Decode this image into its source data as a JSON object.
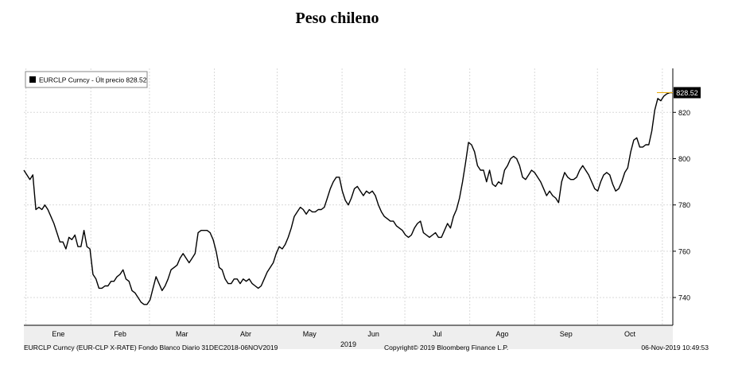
{
  "title": "Peso chileno",
  "legend": {
    "label": "EURCLP Curncy - Últ precio 828.52",
    "color": "#000000"
  },
  "last_value_label": "828.52",
  "footer": {
    "left": "EURCLP Curncy (EUR-CLP X-RATE) Fondo Blanco  Diario 31DEC2018-06NOV2019",
    "center": "Copyright© 2019 Bloomberg Finance L.P.",
    "right": "06-Nov-2019 10:49:53"
  },
  "colors": {
    "line": "#000000",
    "last_marker": "#e8a800",
    "grid": "#d9d9d9",
    "axis_band": "#eeeeee"
  },
  "chart_data": {
    "type": "line",
    "series": [
      {
        "name": "EURCLP Curncy - Últ precio 828.52",
        "x_start": "2018-12-31",
        "x_end": "2019-11-06",
        "values": [
          795,
          793,
          791,
          793,
          778,
          779,
          778,
          780,
          778,
          775,
          772,
          768,
          764,
          764,
          761,
          766,
          765,
          767,
          762,
          762,
          769,
          762,
          761,
          750,
          748,
          744,
          744,
          745,
          745,
          747,
          747,
          749,
          750,
          752,
          748,
          747,
          743,
          742,
          740,
          738,
          737,
          737,
          739,
          744,
          749,
          746,
          743,
          745,
          748,
          752,
          753,
          754,
          757,
          759,
          757,
          755,
          757,
          759,
          768,
          769,
          769,
          769,
          768,
          765,
          760,
          753,
          752,
          748,
          746,
          746,
          748,
          748,
          746,
          748,
          747,
          748,
          746,
          745,
          744,
          745,
          748,
          751,
          753,
          755,
          759,
          762,
          761,
          763,
          766,
          770,
          775,
          777,
          779,
          778,
          776,
          778,
          777,
          777,
          778,
          778,
          779,
          783,
          787,
          790,
          792,
          792,
          786,
          782,
          780,
          783,
          787,
          788,
          786,
          784,
          786,
          785,
          786,
          784,
          780,
          777,
          775,
          774,
          773,
          773,
          771,
          770,
          769,
          767,
          766,
          767,
          770,
          772,
          773,
          768,
          767,
          766,
          767,
          768,
          766,
          766,
          769,
          772,
          770,
          775,
          778,
          783,
          790,
          798,
          807,
          806,
          803,
          797,
          795,
          795,
          790,
          795,
          789,
          788,
          790,
          789,
          795,
          797,
          800,
          801,
          800,
          797,
          792,
          791,
          793,
          795,
          794,
          792,
          790,
          787,
          784,
          786,
          784,
          783,
          781,
          790,
          794,
          792,
          791,
          791,
          792,
          795,
          797,
          795,
          793,
          790,
          787,
          786,
          790,
          793,
          794,
          793,
          789,
          786,
          787,
          790,
          794,
          796,
          803,
          808,
          809,
          805,
          805,
          806,
          806,
          812,
          821,
          826,
          825,
          827,
          828,
          828.5,
          828.5
        ]
      }
    ],
    "x_tick_labels": [
      "Ene",
      "Feb",
      "Mar",
      "Abr",
      "May",
      "Jun",
      "Jul",
      "Ago",
      "Sep",
      "Oct"
    ],
    "x_tick_dates": [
      "2019-01-01",
      "2019-02-01",
      "2019-03-01",
      "2019-04-01",
      "2019-05-01",
      "2019-06-01",
      "2019-07-01",
      "2019-08-01",
      "2019-09-01",
      "2019-10-01",
      "2019-11-01"
    ],
    "x_year_label": "2019",
    "y_ticks": [
      740,
      760,
      780,
      800,
      820
    ],
    "ylim": [
      728,
      839
    ],
    "ylabel": "",
    "xlabel": "",
    "grid": true,
    "legend_position": "top-left",
    "y_axis_side": "right",
    "last_value": 828.52
  }
}
